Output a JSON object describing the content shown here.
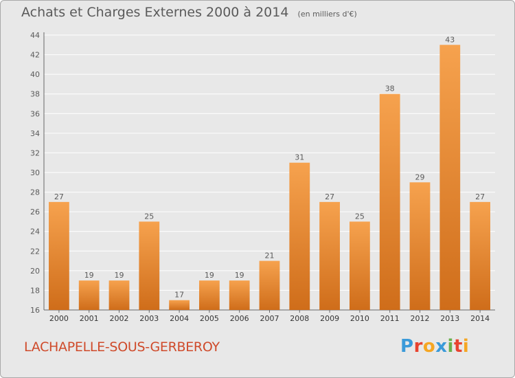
{
  "header": {
    "title": "Achats et Charges Externes 2000 à 2014",
    "subtitle": "(en milliers d'€)"
  },
  "footer": {
    "commune": "LACHAPELLE-SOUS-GERBEROY",
    "logo": [
      "P",
      "r",
      "o",
      "x",
      "i",
      "t",
      "i"
    ],
    "logo_colors": [
      "#3a9ad9",
      "#e8432f",
      "#f5a623",
      "#3a9ad9",
      "#6ab04c",
      "#e8432f",
      "#f5a623"
    ]
  },
  "colors": {
    "bar_light": "#f6a24e",
    "bar_dark": "#cf6d1a",
    "background": "#e8e8e8",
    "grid": "#ffffff",
    "text": "#5a5a5a",
    "commune": "#cf4a2a"
  },
  "chart_data": {
    "type": "bar",
    "title": "Achats et Charges Externes 2000 à 2014",
    "subtitle": "(en milliers d'€)",
    "categories": [
      "2000",
      "2001",
      "2002",
      "2003",
      "2004",
      "2005",
      "2006",
      "2007",
      "2008",
      "2009",
      "2010",
      "2011",
      "2012",
      "2013",
      "2014"
    ],
    "values": [
      27,
      19,
      19,
      25,
      17,
      19,
      19,
      21,
      31,
      27,
      25,
      38,
      29,
      43,
      27
    ],
    "ylim": [
      16,
      44
    ],
    "yticks": [
      16,
      18,
      20,
      22,
      24,
      26,
      28,
      30,
      32,
      34,
      36,
      38,
      40,
      42,
      44
    ],
    "grid": true,
    "data_labels": true
  }
}
